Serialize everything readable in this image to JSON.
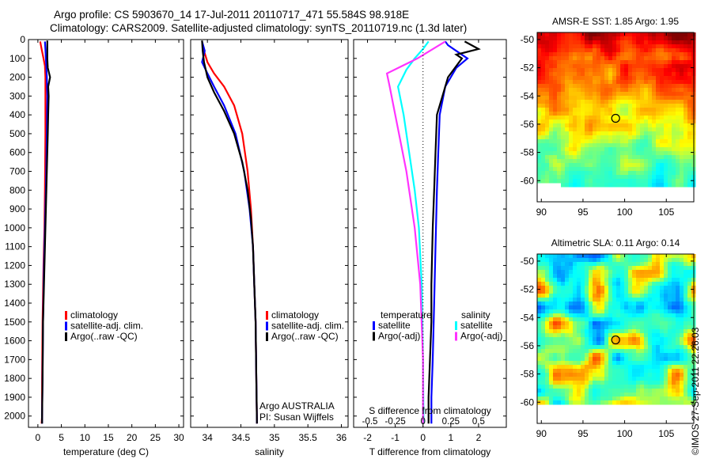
{
  "header": {
    "line1": "Argo profile: CS 5903670_14 17-Jul-2011 20110717_471 55.584S 98.918E",
    "line2": "Climatology: CARS2009. Satellite-adjusted climatology: synTS_20110719.nc (1.3d later)"
  },
  "colors": {
    "climatology": "#ff0000",
    "satellite": "#0000ff",
    "argo": "#000000",
    "argo_adj_salinity": "#ff33ff",
    "satellite_salinity": "#00ffff"
  },
  "chart_data": [
    {
      "type": "line",
      "id": "temperature",
      "xlabel": "temperature (deg C)",
      "ylabel": "",
      "xlim": [
        -2,
        31
      ],
      "ylim": [
        2060,
        0
      ],
      "xticks": [
        0,
        5,
        10,
        15,
        20,
        25,
        30
      ],
      "yticks": [
        0,
        100,
        200,
        300,
        400,
        500,
        600,
        700,
        800,
        900,
        1000,
        1100,
        1200,
        1300,
        1400,
        1500,
        1600,
        1700,
        1800,
        1900,
        2000
      ],
      "legend": {
        "entries": [
          "climatology",
          "satellite-adj. clim.",
          "Argo(..raw -QC)"
        ],
        "placement": "center-left"
      },
      "series": [
        {
          "name": "climatology",
          "color": "#ff0000",
          "x": [
            0.5,
            0.8,
            1.2,
            1.5,
            1.6,
            1.6,
            1.6,
            1.5,
            1.4,
            1.2,
            1.0,
            0.9,
            0.9,
            0.8
          ],
          "y": [
            10,
            50,
            100,
            140,
            200,
            300,
            500,
            800,
            1000,
            1200,
            1500,
            1800,
            2000,
            2040
          ]
        },
        {
          "name": "satellite-adj. clim.",
          "color": "#0000ff",
          "x": [
            1.5,
            1.6,
            1.7,
            1.8,
            1.9,
            2.0,
            1.9,
            1.7,
            1.5,
            1.3,
            1.1,
            1.0,
            0.9,
            0.9
          ],
          "y": [
            10,
            50,
            100,
            150,
            200,
            300,
            500,
            800,
            1000,
            1200,
            1500,
            1800,
            2000,
            2040
          ]
        },
        {
          "name": "Argo(..raw -QC)",
          "color": "#000000",
          "x": [
            2.0,
            2.0,
            2.0,
            2.1,
            2.6,
            2.2,
            2.3,
            2.2,
            2.1,
            1.9,
            1.7,
            1.5,
            1.3,
            1.1,
            1.0,
            0.9,
            0.9
          ],
          "y": [
            5,
            50,
            100,
            150,
            200,
            250,
            300,
            400,
            500,
            700,
            900,
            1100,
            1300,
            1500,
            1800,
            2000,
            2040
          ]
        }
      ]
    },
    {
      "type": "line",
      "id": "salinity",
      "xlabel": "salinity",
      "ylabel": "",
      "xlim": [
        33.75,
        36.1
      ],
      "ylim": [
        2060,
        0
      ],
      "xticks": [
        34,
        34.5,
        35,
        35.5,
        36
      ],
      "legend": {
        "entries": [
          "climatology",
          "satellite-adj. clim.",
          "Argo(..raw -QC)"
        ],
        "placement": "center-right"
      },
      "annotation": [
        "Argo AUSTRALIA",
        "PI: Susan Wijffels"
      ],
      "series": [
        {
          "name": "climatology",
          "color": "#ff0000",
          "x": [
            33.92,
            33.95,
            34.0,
            34.1,
            34.25,
            34.4,
            34.52,
            34.6,
            34.65,
            34.68,
            34.7,
            34.72,
            34.73,
            34.74
          ],
          "y": [
            10,
            60,
            120,
            180,
            250,
            350,
            500,
            700,
            900,
            1100,
            1300,
            1500,
            1800,
            2040
          ]
        },
        {
          "name": "satellite-adj. clim.",
          "color": "#0000ff",
          "x": [
            33.92,
            33.96,
            33.92,
            34.0,
            34.1,
            34.25,
            34.42,
            34.55,
            34.63,
            34.68,
            34.7,
            34.72,
            34.73,
            34.74
          ],
          "y": [
            10,
            60,
            120,
            180,
            250,
            350,
            500,
            700,
            900,
            1100,
            1300,
            1500,
            1800,
            2040
          ]
        },
        {
          "name": "Argo(..raw -QC)",
          "color": "#000000",
          "x": [
            33.92,
            33.93,
            33.95,
            34.0,
            34.1,
            34.25,
            34.4,
            34.52,
            34.6,
            34.65,
            34.68,
            34.7,
            34.72,
            34.73,
            34.74
          ],
          "y": [
            5,
            60,
            120,
            200,
            280,
            380,
            500,
            650,
            800,
            950,
            1100,
            1300,
            1500,
            1800,
            2040
          ]
        }
      ]
    },
    {
      "type": "line",
      "id": "difference",
      "xlabel": "T difference from climatology",
      "xlabel_top": "S difference from climatology",
      "xlim": [
        -2.5,
        3.0
      ],
      "ylim": [
        2060,
        0
      ],
      "xticks": [
        -2,
        -1,
        0,
        1,
        2
      ],
      "xticks_s": [
        "-0.5",
        "-0.25",
        "0",
        "0.25",
        "0.5"
      ],
      "legend": {
        "temperature": {
          "heading": "temperature",
          "entries": [
            "satellite",
            "Argo(-adj)"
          ]
        },
        "salinity": {
          "heading": "salinity",
          "entries": [
            "satellite",
            "Argo(-adj)"
          ]
        },
        "placement": "center"
      },
      "series": [
        {
          "name": "satellite",
          "group": "temperature",
          "color": "#0000ff",
          "x": [
            0.8,
            0.9,
            1.2,
            1.6,
            1.2,
            0.8,
            0.6,
            0.55,
            0.5,
            0.45,
            0.4,
            0.35,
            0.3,
            0.3
          ],
          "y": [
            10,
            30,
            60,
            100,
            150,
            250,
            400,
            600,
            800,
            1100,
            1400,
            1700,
            1900,
            2040
          ]
        },
        {
          "name": "Argo(-adj)",
          "group": "temperature",
          "color": "#000000",
          "x": [
            1.5,
            2.0,
            1.2,
            1.4,
            0.9,
            0.7,
            0.5,
            0.45,
            0.4,
            0.35,
            0.3,
            0.3,
            0.25,
            0.2,
            0.2
          ],
          "y": [
            10,
            50,
            80,
            100,
            200,
            300,
            400,
            600,
            800,
            1000,
            1300,
            1500,
            1700,
            1900,
            2040
          ]
        },
        {
          "name": "satellite",
          "group": "salinity",
          "color": "#00ffff",
          "x": [
            0.2,
            0.0,
            -0.3,
            -0.6,
            -0.9,
            -0.7,
            -0.5,
            -0.3,
            -0.15,
            -0.05,
            0.0,
            0.02
          ],
          "y": [
            10,
            50,
            100,
            160,
            250,
            400,
            600,
            800,
            1000,
            1300,
            1700,
            2040
          ]
        },
        {
          "name": "Argo(-adj)",
          "group": "salinity",
          "color": "#ff33ff",
          "x": [
            0.8,
            -0.2,
            -1.3,
            -1.2,
            -1.0,
            -0.6,
            -0.3,
            -0.1,
            0.0,
            0.0
          ],
          "y": [
            10,
            100,
            180,
            250,
            400,
            700,
            1000,
            1300,
            1700,
            2040
          ]
        }
      ]
    },
    {
      "type": "heatmap",
      "id": "sst",
      "title": "AMSR-E SST: 1.85 Argo: 1.95",
      "xlim": [
        89.5,
        108.3
      ],
      "ylim": [
        -61.5,
        -49.5
      ],
      "xticks": [
        90,
        95,
        100,
        105
      ],
      "yticks": [
        -50,
        -52,
        -54,
        -56,
        -58,
        -60
      ],
      "marker": {
        "lon": 98.918,
        "lat": -55.584
      }
    },
    {
      "type": "heatmap",
      "id": "sla",
      "title": "Altimetric SLA: 0.11 Argo: 0.14",
      "xlim": [
        89.5,
        108.3
      ],
      "ylim": [
        -61.5,
        -49.5
      ],
      "xticks": [
        90,
        95,
        100,
        105
      ],
      "yticks": [
        -50,
        -52,
        -54,
        -56,
        -58,
        -60
      ],
      "marker": {
        "lon": 98.918,
        "lat": -55.584
      }
    }
  ],
  "credit": "©IMOS 27-Sep-2011 22:26:03"
}
